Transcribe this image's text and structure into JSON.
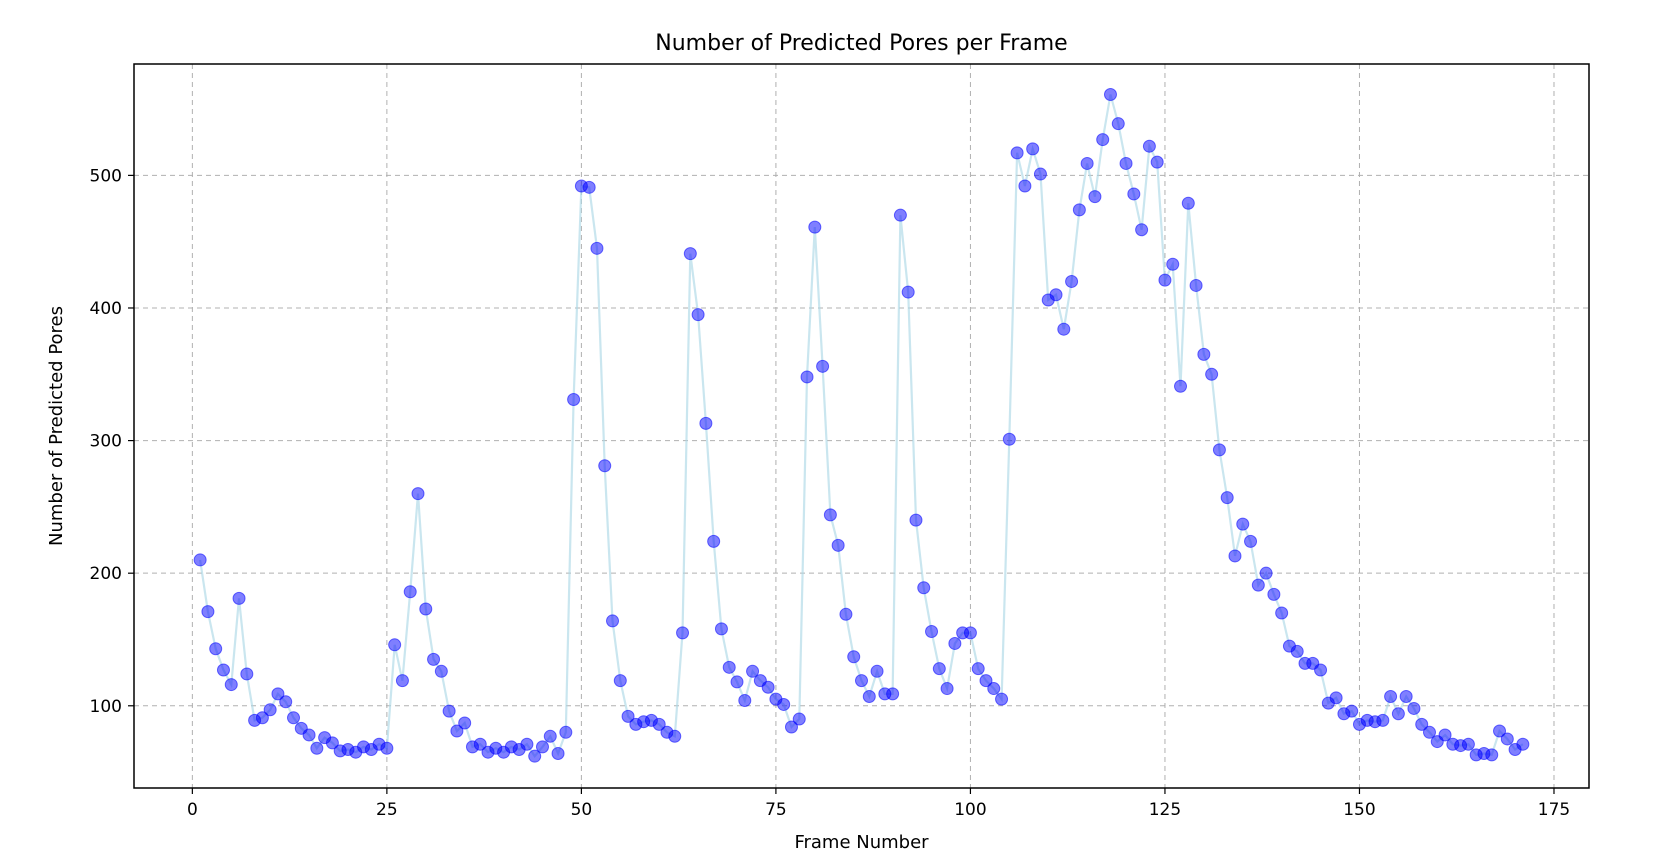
{
  "chart_data": {
    "type": "line",
    "title": "Number of Predicted Pores per Frame",
    "xlabel": "Frame Number",
    "ylabel": "Number of Predicted Pores",
    "xlim": [
      -7.5,
      179.5
    ],
    "ylim": [
      38,
      584
    ],
    "xticks": [
      0,
      25,
      50,
      75,
      100,
      125,
      150,
      175
    ],
    "yticks": [
      100,
      200,
      300,
      400,
      500
    ],
    "grid": true,
    "line_color": "#add8e6",
    "marker_color": "#0000ff",
    "x": [
      1,
      2,
      3,
      4,
      5,
      6,
      7,
      8,
      9,
      10,
      11,
      12,
      13,
      14,
      15,
      16,
      17,
      18,
      19,
      20,
      21,
      22,
      23,
      24,
      25,
      26,
      27,
      28,
      29,
      30,
      31,
      32,
      33,
      34,
      35,
      36,
      37,
      38,
      39,
      40,
      41,
      42,
      43,
      44,
      45,
      46,
      47,
      48,
      49,
      50,
      51,
      52,
      53,
      54,
      55,
      56,
      57,
      58,
      59,
      60,
      61,
      62,
      63,
      64,
      65,
      66,
      67,
      68,
      69,
      70,
      71,
      72,
      73,
      74,
      75,
      76,
      77,
      78,
      79,
      80,
      81,
      82,
      83,
      84,
      85,
      86,
      87,
      88,
      89,
      90,
      91,
      92,
      93,
      94,
      95,
      96,
      97,
      98,
      99,
      100,
      101,
      102,
      103,
      104,
      105,
      106,
      107,
      108,
      109,
      110,
      111,
      112,
      113,
      114,
      115,
      116,
      117,
      118,
      119,
      120,
      121,
      122,
      123,
      124,
      125,
      126,
      127,
      128,
      129,
      130,
      131,
      132,
      133,
      134,
      135,
      136,
      137,
      138,
      139,
      140,
      141,
      142,
      143,
      144,
      145,
      146,
      147,
      148,
      149,
      150,
      151,
      152,
      153,
      154,
      155,
      156,
      157,
      158,
      159,
      160,
      161,
      162,
      163,
      164,
      165,
      166,
      167,
      168,
      169,
      170,
      171
    ],
    "y": [
      210,
      171,
      143,
      127,
      116,
      181,
      124,
      89,
      91,
      97,
      109,
      103,
      91,
      83,
      78,
      68,
      76,
      72,
      66,
      67,
      65,
      69,
      67,
      71,
      68,
      146,
      119,
      186,
      260,
      173,
      135,
      126,
      96,
      81,
      87,
      69,
      71,
      65,
      68,
      65,
      69,
      67,
      71,
      62,
      69,
      77,
      64,
      80,
      331,
      492,
      491,
      445,
      281,
      164,
      119,
      92,
      86,
      88,
      89,
      86,
      80,
      77,
      155,
      441,
      395,
      313,
      224,
      158,
      129,
      118,
      104,
      126,
      119,
      114,
      105,
      101,
      84,
      90,
      348,
      461,
      356,
      244,
      221,
      169,
      137,
      119,
      107,
      126,
      109,
      109,
      470,
      412,
      240,
      189,
      156,
      128,
      113,
      147,
      155,
      155,
      128,
      119,
      113,
      105,
      301,
      517,
      492,
      520,
      501,
      406,
      410,
      384,
      420,
      474,
      509,
      484,
      527,
      561,
      539,
      509,
      486,
      459,
      522,
      510,
      421,
      433,
      341,
      479,
      417,
      365,
      350,
      293,
      257,
      213,
      237,
      224,
      191,
      200,
      184,
      170,
      145,
      141,
      132,
      132,
      127,
      102,
      106,
      94,
      96,
      86,
      89,
      88,
      89,
      107,
      94,
      107,
      98,
      86,
      80,
      73,
      78,
      71,
      70,
      71,
      63,
      64,
      63,
      81,
      75,
      67,
      71
    ]
  }
}
